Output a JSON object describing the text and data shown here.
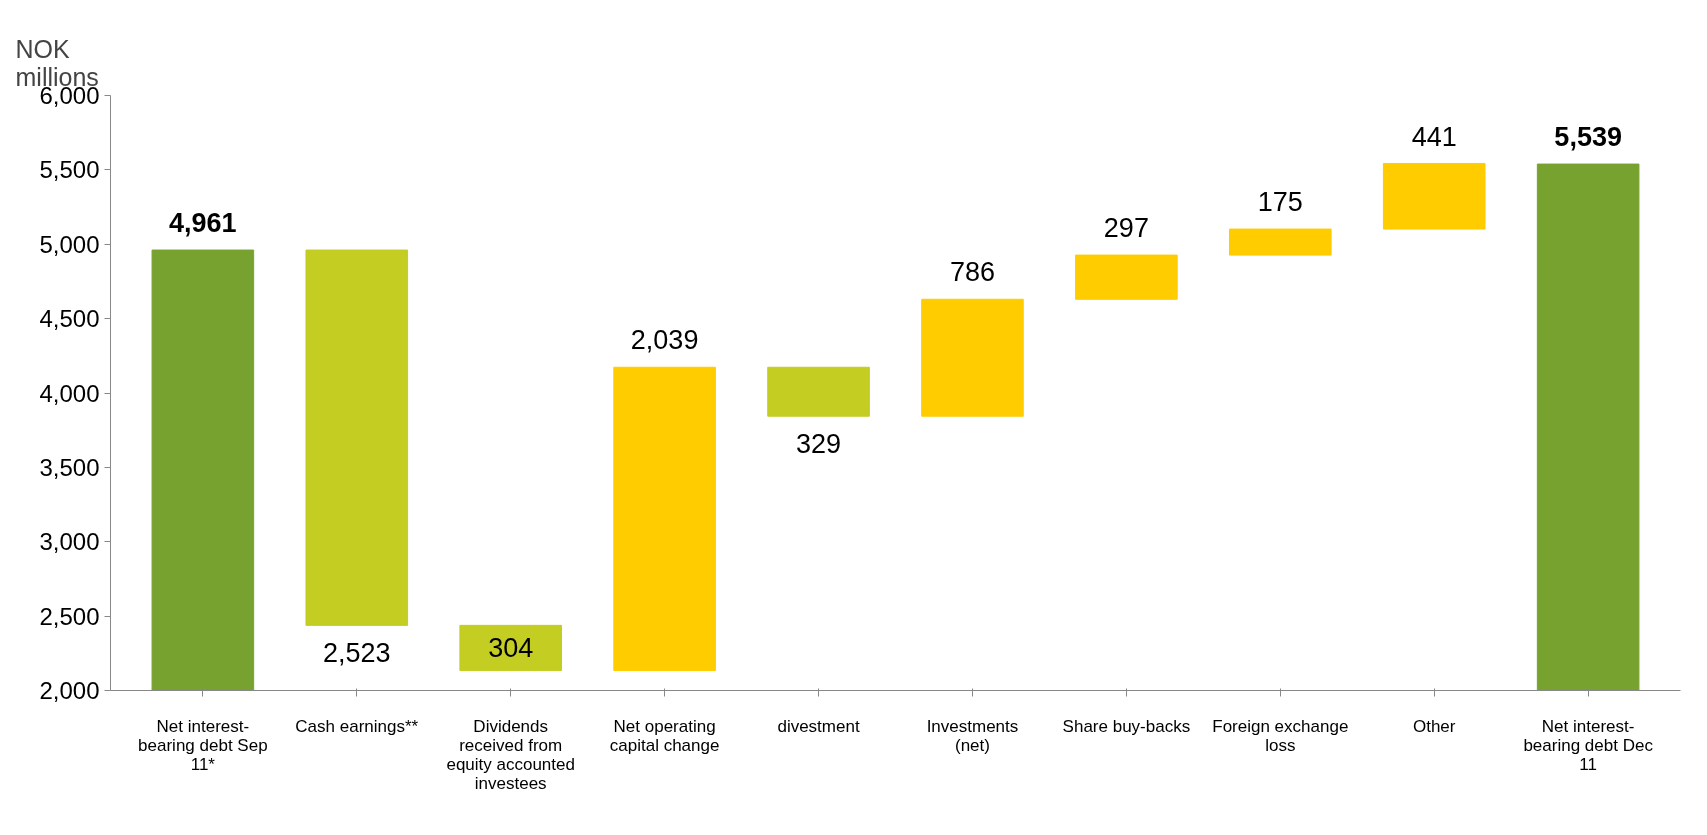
{
  "chart_data": {
    "type": "bar",
    "ylabel": "NOK millions",
    "categories": [
      "Net interest-bearing debt Sep 11*",
      "Cash earnings**",
      "Dividends received from equity accounted investees",
      "Net operating capital change",
      "divestment",
      "Investments (net)",
      "Share buy-backs",
      "Foreign exchange loss",
      "Other",
      "Net interest-bearing debt Dec 11"
    ],
    "values": [
      4961,
      -2523,
      -304,
      2039,
      -329,
      786,
      297,
      175,
      441,
      5539
    ],
    "base": [
      null,
      4961,
      2438,
      2134,
      4173,
      3844,
      4630,
      4927,
      5102,
      null
    ],
    "colors": [
      "#78a22f",
      "#c3cd22",
      "#c3cd22",
      "#ffcc00",
      "#c3cd22",
      "#ffcc00",
      "#ffcc00",
      "#ffcc00",
      "#ffcc00",
      "#78a22f"
    ],
    "value_labels": [
      "4,961",
      "2,523",
      "304",
      "2,039",
      "329",
      "786",
      "297",
      "175",
      "441",
      "5,539"
    ],
    "ylim": [
      2000,
      6000
    ],
    "yticks": [
      {
        "value": 2000,
        "label": "2,000"
      },
      {
        "value": 2500,
        "label": "2,500"
      },
      {
        "value": 3000,
        "label": "3,000"
      },
      {
        "value": 3500,
        "label": "3,500"
      },
      {
        "value": 4000,
        "label": "4,000"
      },
      {
        "value": 4500,
        "label": "4,500"
      },
      {
        "value": 5000,
        "label": "5,000"
      },
      {
        "value": 5500,
        "label": "5,500"
      },
      {
        "value": 6000,
        "label": "6,000"
      }
    ],
    "grid": false
  }
}
